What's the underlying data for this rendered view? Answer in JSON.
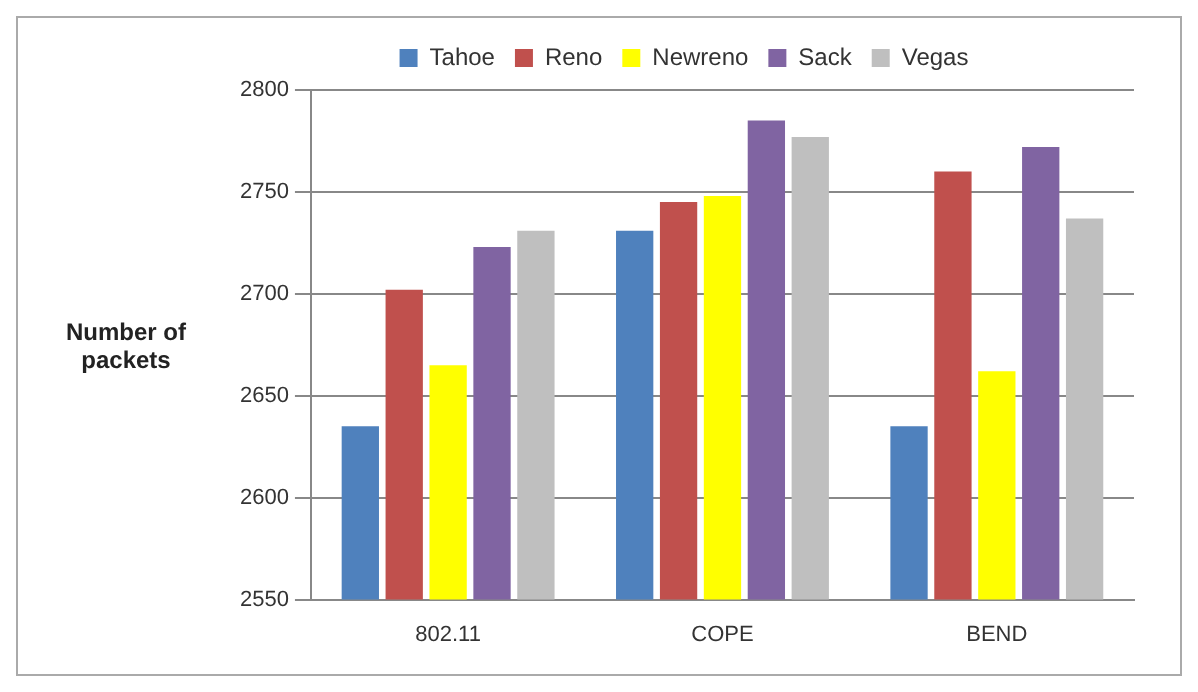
{
  "chart_data": {
    "type": "bar",
    "ylabel": "Number of packets",
    "categories": [
      "802.11",
      "COPE",
      "BEND"
    ],
    "series": [
      {
        "name": "Tahoe",
        "color": "#4f81bd",
        "values": [
          2635,
          2731,
          2635
        ]
      },
      {
        "name": "Reno",
        "color": "#c0504d",
        "values": [
          2702,
          2745,
          2760
        ]
      },
      {
        "name": "Newreno",
        "color": "#ffff00",
        "values": [
          2665,
          2748,
          2662
        ]
      },
      {
        "name": "Sack",
        "color": "#8064a2",
        "values": [
          2723,
          2785,
          2772
        ]
      },
      {
        "name": "Vegas",
        "color": "#bfbfbf",
        "values": [
          2731,
          2777,
          2737
        ]
      }
    ],
    "ylim": [
      2550,
      2800
    ],
    "yticks": [
      2550,
      2600,
      2650,
      2700,
      2750,
      2800
    ],
    "grid": "y",
    "legend": "top"
  }
}
